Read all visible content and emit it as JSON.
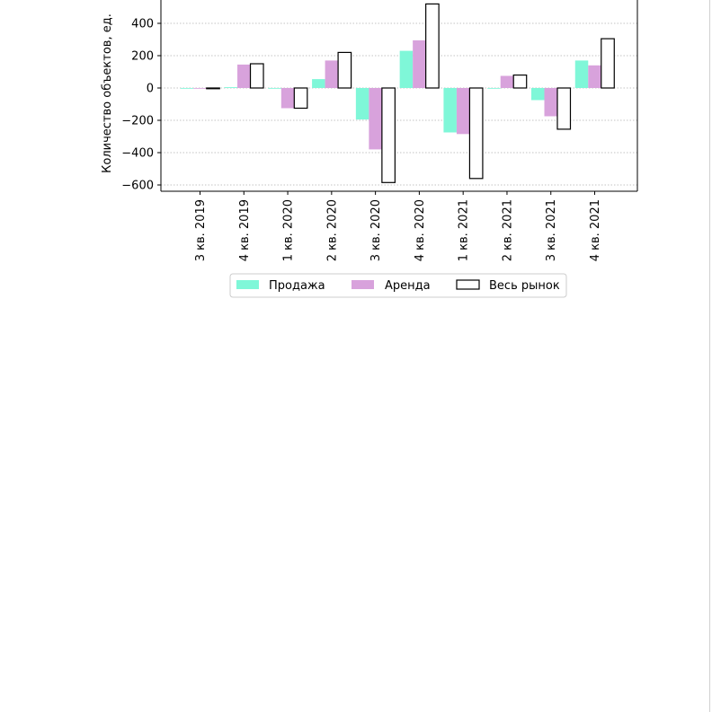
{
  "chart_data": {
    "type": "bar",
    "title": "",
    "xlabel": "",
    "ylabel": "Количество объектов, ед.",
    "ylim": [
      -630,
      570
    ],
    "yticks": [
      -600,
      -400,
      -200,
      0,
      200,
      400
    ],
    "ytick_labels": [
      "−600",
      "−400",
      "−200",
      "0",
      "200",
      "400"
    ],
    "grid": "horizontal dotted",
    "legend_position": "bottom",
    "categories": [
      "3 кв. 2019",
      "4 кв. 2019",
      "1 кв. 2020",
      "2 кв. 2020",
      "3 кв. 2020",
      "4 кв. 2020",
      "1 кв. 2021",
      "2 кв. 2021",
      "3 кв. 2021",
      "4 кв. 2021"
    ],
    "series": [
      {
        "name": "Продажа",
        "color": "#7ff7d8",
        "outline": "",
        "values": [
          0,
          5,
          0,
          55,
          -195,
          230,
          -275,
          0,
          -75,
          170
        ]
      },
      {
        "name": "Аренда",
        "color": "#d8a2dc",
        "outline": "",
        "values": [
          0,
          145,
          -125,
          170,
          -380,
          295,
          -285,
          75,
          -175,
          140
        ]
      },
      {
        "name": "Весь рынок",
        "color": "#ffffff",
        "outline": "#000000",
        "values": [
          -2,
          150,
          -125,
          220,
          -585,
          520,
          -560,
          80,
          -255,
          305
        ]
      }
    ]
  }
}
